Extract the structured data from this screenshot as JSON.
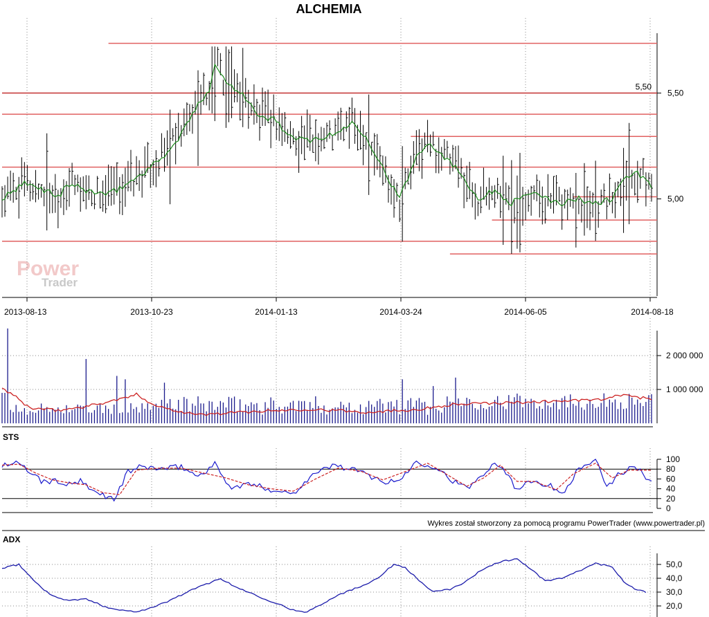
{
  "title": "ALCHEMIA",
  "credit": "Wykres został stworzony za pomocą programu PowerTrader (www.powertrader.pl)",
  "watermark": {
    "line1": "Power",
    "line2": "Trader"
  },
  "colors": {
    "price_bar": "#000000",
    "moving_average": "#1a8a1a",
    "support_resistance": "#e06060",
    "volume_bar": "#1a1a8c",
    "volume_average": "#cc2222",
    "sts_k": "#1a1acc",
    "sts_d": "#cc2222",
    "adx": "#1a1aaa"
  },
  "chart_data": [
    {
      "type": "ohlc",
      "name": "price",
      "title": "ALCHEMIA",
      "x_ticks": [
        "2013-08-13",
        "2013-10-23",
        "2014-01-13",
        "2014-03-24",
        "2014-06-05",
        "2014-08-18"
      ],
      "y_ticks": [
        "5,00",
        "5,50"
      ],
      "ylim": [
        4.6,
        5.75
      ],
      "price_label": "5,50",
      "ma_anchors": [
        [
          0,
          5.0
        ],
        [
          8,
          5.07
        ],
        [
          16,
          5.04
        ],
        [
          20,
          5.01
        ],
        [
          24,
          5.07
        ],
        [
          30,
          5.04
        ],
        [
          38,
          5.02
        ],
        [
          42,
          5.05
        ],
        [
          48,
          5.1
        ],
        [
          55,
          5.17
        ],
        [
          62,
          5.26
        ],
        [
          68,
          5.4
        ],
        [
          74,
          5.52
        ],
        [
          76,
          5.64
        ],
        [
          80,
          5.55
        ],
        [
          86,
          5.5
        ],
        [
          92,
          5.38
        ],
        [
          97,
          5.38
        ],
        [
          104,
          5.28
        ],
        [
          110,
          5.28
        ],
        [
          118,
          5.3
        ],
        [
          125,
          5.36
        ],
        [
          130,
          5.3
        ],
        [
          137,
          5.12
        ],
        [
          142,
          5.0
        ],
        [
          148,
          5.2
        ],
        [
          152,
          5.27
        ],
        [
          158,
          5.2
        ],
        [
          164,
          5.12
        ],
        [
          170,
          5.0
        ],
        [
          176,
          5.04
        ],
        [
          182,
          4.98
        ],
        [
          188,
          5.03
        ],
        [
          194,
          5.0
        ],
        [
          200,
          4.98
        ],
        [
          206,
          5.0
        ],
        [
          212,
          4.98
        ],
        [
          218,
          5.0
        ],
        [
          222,
          5.1
        ],
        [
          227,
          5.12
        ],
        [
          232,
          5.06
        ]
      ],
      "horizontal_lines": [
        {
          "value": 5.735,
          "from": 38,
          "to": 232
        },
        {
          "value": 5.5,
          "from": 0,
          "to": 232
        },
        {
          "value": 5.4,
          "from": 0,
          "to": 232
        },
        {
          "value": 5.295,
          "from": 146,
          "to": 232
        },
        {
          "value": 5.15,
          "from": 0,
          "to": 232
        },
        {
          "value": 5.01,
          "from": 204,
          "to": 232
        },
        {
          "value": 4.9,
          "from": 175,
          "to": 232
        },
        {
          "value": 4.8,
          "from": 0,
          "to": 232
        },
        {
          "value": 4.74,
          "from": 160,
          "to": 232
        }
      ]
    },
    {
      "type": "bar",
      "name": "volume",
      "y_ticks": [
        "1 000 000",
        "2 000 000"
      ],
      "ylim": [
        0,
        2900000
      ]
    },
    {
      "type": "line",
      "name": "STS",
      "title": "STS",
      "y_ticks": [
        "0",
        "20",
        "40",
        "60",
        "80",
        "100"
      ],
      "ylim": [
        0,
        100
      ],
      "levels": [
        20,
        80
      ],
      "k_anchors": [
        [
          0,
          88
        ],
        [
          5,
          92
        ],
        [
          10,
          75
        ],
        [
          14,
          55
        ],
        [
          20,
          55
        ],
        [
          24,
          48
        ],
        [
          28,
          55
        ],
        [
          32,
          35
        ],
        [
          36,
          28
        ],
        [
          40,
          18
        ],
        [
          45,
          75
        ],
        [
          50,
          85
        ],
        [
          58,
          80
        ],
        [
          64,
          85
        ],
        [
          70,
          65
        ],
        [
          76,
          90
        ],
        [
          82,
          40
        ],
        [
          88,
          50
        ],
        [
          95,
          40
        ],
        [
          104,
          30
        ],
        [
          110,
          65
        ],
        [
          118,
          88
        ],
        [
          125,
          80
        ],
        [
          132,
          65
        ],
        [
          138,
          52
        ],
        [
          142,
          58
        ],
        [
          148,
          95
        ],
        [
          155,
          85
        ],
        [
          160,
          60
        ],
        [
          166,
          40
        ],
        [
          170,
          60
        ],
        [
          176,
          95
        ],
        [
          180,
          75
        ],
        [
          184,
          35
        ],
        [
          188,
          60
        ],
        [
          196,
          45
        ],
        [
          200,
          30
        ],
        [
          206,
          80
        ],
        [
          212,
          100
        ],
        [
          216,
          40
        ],
        [
          220,
          70
        ],
        [
          226,
          85
        ],
        [
          232,
          55
        ]
      ],
      "d_anchors": [
        [
          0,
          88
        ],
        [
          6,
          90
        ],
        [
          12,
          72
        ],
        [
          18,
          58
        ],
        [
          24,
          52
        ],
        [
          30,
          48
        ],
        [
          36,
          32
        ],
        [
          42,
          28
        ],
        [
          48,
          78
        ],
        [
          56,
          82
        ],
        [
          64,
          82
        ],
        [
          72,
          72
        ],
        [
          80,
          62
        ],
        [
          88,
          48
        ],
        [
          96,
          40
        ],
        [
          104,
          35
        ],
        [
          112,
          60
        ],
        [
          120,
          82
        ],
        [
          128,
          76
        ],
        [
          136,
          58
        ],
        [
          144,
          75
        ],
        [
          152,
          92
        ],
        [
          158,
          72
        ],
        [
          166,
          45
        ],
        [
          172,
          62
        ],
        [
          178,
          88
        ],
        [
          184,
          55
        ],
        [
          190,
          55
        ],
        [
          198,
          38
        ],
        [
          204,
          70
        ],
        [
          212,
          92
        ],
        [
          218,
          62
        ],
        [
          224,
          78
        ],
        [
          232,
          78
        ]
      ]
    },
    {
      "type": "line",
      "name": "ADX",
      "title": "ADX",
      "y_ticks": [
        "20,0",
        "30,0",
        "40,0",
        "50,0"
      ],
      "ylim": [
        13,
        58
      ],
      "anchors": [
        [
          0,
          47
        ],
        [
          6,
          50
        ],
        [
          12,
          37
        ],
        [
          18,
          27
        ],
        [
          24,
          24
        ],
        [
          30,
          25
        ],
        [
          36,
          20
        ],
        [
          42,
          17
        ],
        [
          48,
          16
        ],
        [
          54,
          19
        ],
        [
          60,
          24
        ],
        [
          66,
          30
        ],
        [
          72,
          35
        ],
        [
          78,
          40
        ],
        [
          82,
          35
        ],
        [
          88,
          30
        ],
        [
          94,
          25
        ],
        [
          98,
          22
        ],
        [
          104,
          17
        ],
        [
          108,
          15
        ],
        [
          112,
          19
        ],
        [
          120,
          28
        ],
        [
          128,
          34
        ],
        [
          134,
          40
        ],
        [
          140,
          50
        ],
        [
          144,
          48
        ],
        [
          148,
          40
        ],
        [
          154,
          30
        ],
        [
          160,
          32
        ],
        [
          166,
          38
        ],
        [
          172,
          47
        ],
        [
          178,
          52
        ],
        [
          184,
          54
        ],
        [
          188,
          48
        ],
        [
          194,
          38
        ],
        [
          200,
          40
        ],
        [
          206,
          45
        ],
        [
          212,
          51
        ],
        [
          218,
          48
        ],
        [
          222,
          38
        ],
        [
          226,
          32
        ],
        [
          230,
          30
        ]
      ]
    }
  ]
}
